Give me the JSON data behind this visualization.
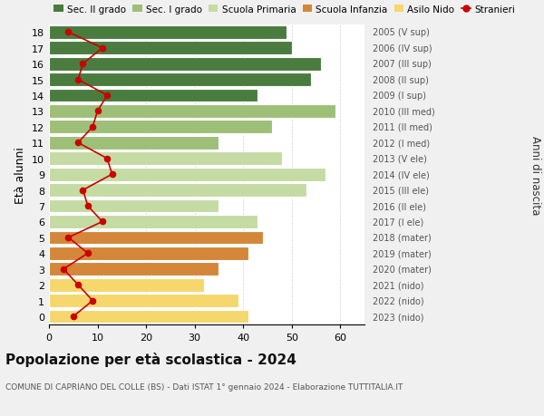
{
  "ages": [
    0,
    1,
    2,
    3,
    4,
    5,
    6,
    7,
    8,
    9,
    10,
    11,
    12,
    13,
    14,
    15,
    16,
    17,
    18
  ],
  "bar_values": [
    41,
    39,
    32,
    35,
    41,
    44,
    43,
    35,
    53,
    57,
    48,
    35,
    46,
    59,
    43,
    54,
    56,
    50,
    49
  ],
  "bar_colors": [
    "#f5d76e",
    "#f5d76e",
    "#f5d76e",
    "#d4873a",
    "#d4873a",
    "#d4873a",
    "#c5dba4",
    "#c5dba4",
    "#c5dba4",
    "#c5dba4",
    "#c5dba4",
    "#9ebf77",
    "#9ebf77",
    "#9ebf77",
    "#4a7c3f",
    "#4a7c3f",
    "#4a7c3f",
    "#4a7c3f",
    "#4a7c3f"
  ],
  "stranieri_values": [
    5,
    9,
    6,
    3,
    8,
    4,
    11,
    8,
    7,
    13,
    12,
    6,
    9,
    10,
    12,
    6,
    7,
    11,
    4
  ],
  "right_labels": [
    "2023 (nido)",
    "2022 (nido)",
    "2021 (nido)",
    "2020 (mater)",
    "2019 (mater)",
    "2018 (mater)",
    "2017 (I ele)",
    "2016 (II ele)",
    "2015 (III ele)",
    "2014 (IV ele)",
    "2013 (V ele)",
    "2012 (I med)",
    "2011 (II med)",
    "2010 (III med)",
    "2009 (I sup)",
    "2008 (II sup)",
    "2007 (III sup)",
    "2006 (IV sup)",
    "2005 (V sup)"
  ],
  "legend_labels": [
    "Sec. II grado",
    "Sec. I grado",
    "Scuola Primaria",
    "Scuola Infanzia",
    "Asilo Nido",
    "Stranieri"
  ],
  "legend_colors": [
    "#4a7c3f",
    "#9ebf77",
    "#c5dba4",
    "#d4873a",
    "#f5d76e",
    "#cc0000"
  ],
  "title": "Popolazione per età scolastica - 2024",
  "subtitle": "COMUNE DI CAPRIANO DEL COLLE (BS) - Dati ISTAT 1° gennaio 2024 - Elaborazione TUTTITALIA.IT",
  "ylabel": "Età alunni",
  "right_axis_label": "Anni di nascita",
  "xlim": [
    0,
    65
  ],
  "xticks": [
    0,
    10,
    20,
    30,
    40,
    50,
    60
  ],
  "bg_color": "#f0f0f0",
  "plot_bg": "#ffffff"
}
